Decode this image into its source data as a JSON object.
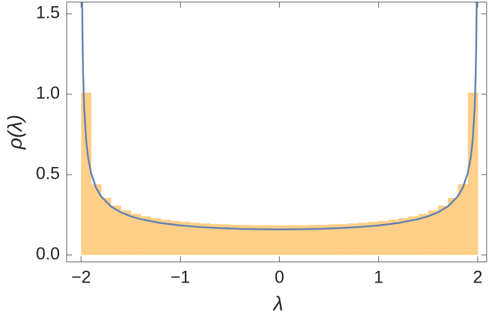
{
  "chart_data": {
    "type": "histogram",
    "xlabel": "λ",
    "ylabel": "ρ(λ)",
    "bins": [
      -2,
      -1.9,
      -1.8,
      -1.7,
      -1.6,
      -1.5,
      -1.4,
      -1.3,
      -1.2,
      -1.1,
      -1,
      -0.9,
      -0.8,
      -0.7,
      -0.6,
      -0.5,
      -0.4,
      -0.3,
      -0.2,
      -0.1,
      0,
      0.1,
      0.2,
      0.3,
      0.4,
      0.5,
      0.6,
      0.7,
      0.8,
      0.9,
      1,
      1.1,
      1.2,
      1.3,
      1.4,
      1.5,
      1.6,
      1.7,
      1.8,
      1.9,
      2
    ],
    "values": [
      1.01,
      0.44,
      0.355,
      0.307,
      0.277,
      0.256,
      0.241,
      0.229,
      0.22,
      0.212,
      0.206,
      0.201,
      0.197,
      0.193,
      0.191,
      0.188,
      0.187,
      0.185,
      0.185,
      0.184,
      0.184,
      0.185,
      0.185,
      0.187,
      0.188,
      0.191,
      0.193,
      0.197,
      0.201,
      0.206,
      0.212,
      0.22,
      0.229,
      0.241,
      0.256,
      0.277,
      0.307,
      0.355,
      0.44,
      1.01
    ],
    "color": "#fecf88",
    "curve": {
      "color": "#5e81b5",
      "x": [
        -1.99,
        -1.985,
        -1.98,
        -1.97,
        -1.95,
        -1.93,
        -1.9,
        -1.85,
        -1.8,
        -1.7,
        -1.6,
        -1.5,
        -1.4,
        -1.2,
        -1,
        -0.8,
        -0.6,
        -0.4,
        -0.2,
        0,
        0.2,
        0.4,
        0.6,
        0.8,
        1,
        1.2,
        1.4,
        1.5,
        1.6,
        1.7,
        1.8,
        1.85,
        1.9,
        1.93,
        1.95,
        1.97,
        1.98,
        1.985,
        1.99
      ],
      "values": [
        1.5938,
        1.3019,
        1.1283,
        0.9224,
        0.7163,
        0.6069,
        0.5097,
        0.4189,
        0.3651,
        0.3021,
        0.2653,
        0.2406,
        0.2229,
        0.1989,
        0.1838,
        0.1737,
        0.1668,
        0.1624,
        0.16,
        0.1592,
        0.16,
        0.1624,
        0.1668,
        0.1737,
        0.1838,
        0.1989,
        0.2229,
        0.2406,
        0.2653,
        0.3021,
        0.3651,
        0.4189,
        0.5097,
        0.6069,
        0.7163,
        0.9224,
        1.1283,
        1.3019,
        1.5938
      ]
    },
    "xlim": [
      -2.146,
      2.09
    ],
    "ylim": [
      -0.043,
      1.573
    ],
    "xticks": [
      {
        "value": -2,
        "label": "−2"
      },
      {
        "value": -1,
        "label": "−1"
      },
      0,
      1,
      2
    ],
    "yticks": [
      {
        "value": 0,
        "label": "0.0"
      },
      0.5,
      {
        "value": 1,
        "label": "1.0"
      },
      1.5
    ],
    "grid": false
  }
}
